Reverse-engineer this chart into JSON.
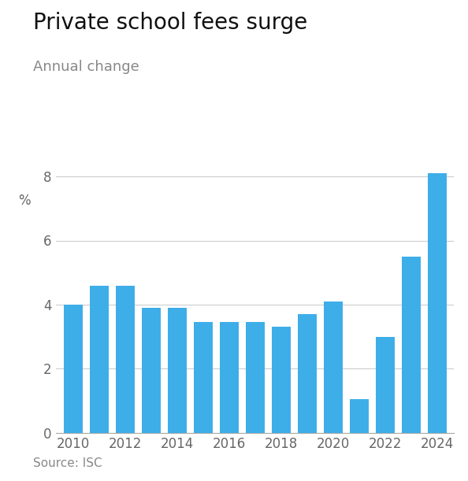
{
  "title": "Private school fees surge",
  "subtitle": "Annual change",
  "ylabel_unit": "%",
  "source": "Source: ISC",
  "years": [
    2010,
    2011,
    2012,
    2013,
    2014,
    2015,
    2016,
    2017,
    2018,
    2019,
    2020,
    2021,
    2022,
    2023,
    2024
  ],
  "values": [
    4.0,
    4.6,
    4.6,
    3.9,
    3.9,
    3.45,
    3.45,
    3.45,
    3.3,
    3.7,
    4.1,
    1.05,
    3.0,
    5.5,
    8.1
  ],
  "bar_color": "#3eaee8",
  "background_color": "#ffffff",
  "ylim": [
    0,
    9
  ],
  "yticks": [
    0,
    2,
    4,
    6,
    8
  ],
  "xticks": [
    2010,
    2012,
    2014,
    2016,
    2018,
    2020,
    2022,
    2024
  ],
  "grid_color": "#cccccc",
  "title_fontsize": 20,
  "subtitle_fontsize": 13,
  "tick_fontsize": 12,
  "source_fontsize": 11
}
